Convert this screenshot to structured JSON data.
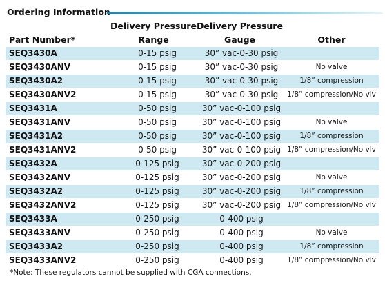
{
  "section_title": "Ordering Information",
  "headers": {
    "part_number": "Part Number*",
    "range_line1": "Delivery Pressure",
    "range_line2": "Range",
    "gauge_line1": "Delivery Pressure",
    "gauge_line2": "Gauge",
    "other": "Other"
  },
  "rows": [
    {
      "part": "SEQ3430A",
      "range": "0-15 psig",
      "gauge": "30” vac-0-30 psig",
      "other": ""
    },
    {
      "part": "SEQ3430ANV",
      "range": "0-15 psig",
      "gauge": "30” vac-0-30 psig",
      "other": "No valve"
    },
    {
      "part": "SEQ3430A2",
      "range": "0-15 psig",
      "gauge": "30” vac-0-30 psig",
      "other": "1/8” compression"
    },
    {
      "part": "SEQ3430ANV2",
      "range": "0-15 psig",
      "gauge": "30” vac-0-30 psig",
      "other": "1/8” compression/No vlv"
    },
    {
      "part": "SEQ3431A",
      "range": "0-50 psig",
      "gauge": "30” vac-0-100 psig",
      "other": ""
    },
    {
      "part": "SEQ3431ANV",
      "range": "0-50 psig",
      "gauge": "30” vac-0-100 psig",
      "other": "No valve"
    },
    {
      "part": "SEQ3431A2",
      "range": "0-50 psig",
      "gauge": "30” vac-0-100 psig",
      "other": "1/8” compression"
    },
    {
      "part": "SEQ3431ANV2",
      "range": "0-50 psig",
      "gauge": "30” vac-0-100 psig",
      "other": "1/8” compression/No vlv"
    },
    {
      "part": "SEQ3432A",
      "range": "0-125 psig",
      "gauge": "30” vac-0-200 psig",
      "other": ""
    },
    {
      "part": "SEQ3432ANV",
      "range": "0-125 psig",
      "gauge": "30” vac-0-200 psig",
      "other": "No valve"
    },
    {
      "part": "SEQ3432A2",
      "range": "0-125 psig",
      "gauge": "30” vac-0-200 psig",
      "other": "1/8” compression"
    },
    {
      "part": "SEQ3432ANV2",
      "range": "0-125 psig",
      "gauge": "30” vac-0-200 psig",
      "other": "1/8” compression/No vlv"
    },
    {
      "part": "SEQ3433A",
      "range": "0-250 psig",
      "gauge": "0-400 psig",
      "other": ""
    },
    {
      "part": "SEQ3433ANV",
      "range": "0-250 psig",
      "gauge": "0-400 psig",
      "other": "No valve"
    },
    {
      "part": "SEQ3433A2",
      "range": "0-250 psig",
      "gauge": "0-400 psig",
      "other": "1/8” compression"
    },
    {
      "part": "SEQ3433ANV2",
      "range": "0-250 psig",
      "gauge": "0-400 psig",
      "other": "1/8” compression/No vlv"
    }
  ],
  "note": "*Note: These regulators cannot be supplied with CGA connections.",
  "colors": {
    "row_shade": "#cfe9f3",
    "title_bar": "#2a7fa0"
  }
}
